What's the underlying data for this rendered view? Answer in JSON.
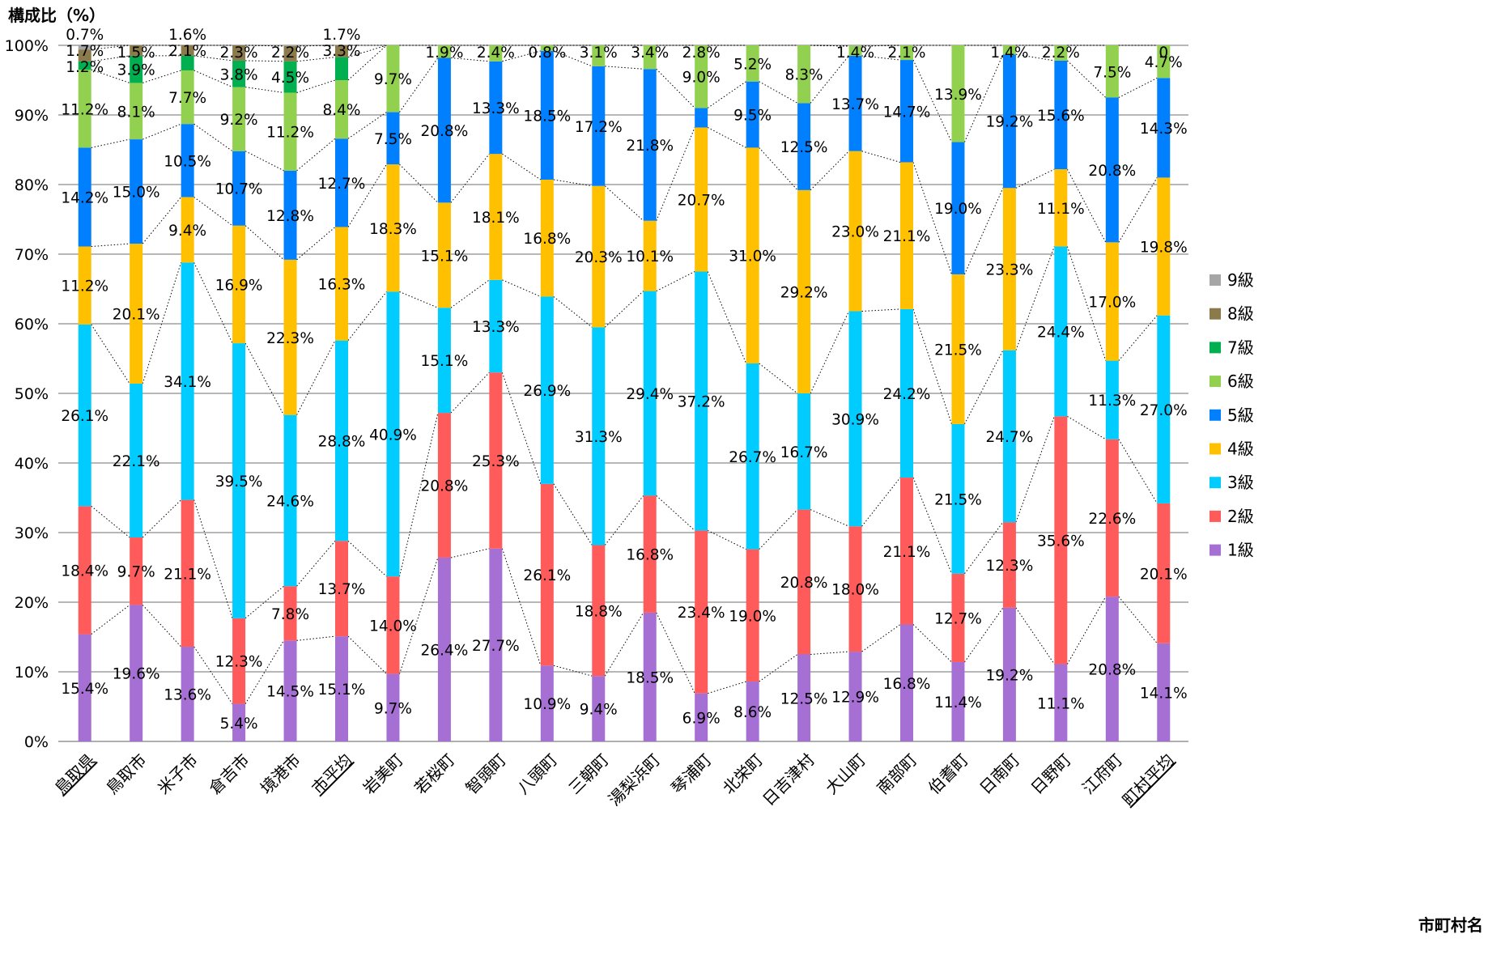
{
  "chart_data": {
    "type": "bar",
    "stacked": true,
    "ylabel": "構成比（%）",
    "xlabel": "市町村名",
    "ylim": [
      0,
      100
    ],
    "yticks": [
      "0%",
      "10%",
      "20%",
      "30%",
      "40%",
      "50%",
      "60%",
      "70%",
      "80%",
      "90%",
      "100%"
    ],
    "grid": true,
    "legend_position": "right",
    "categories": [
      "鳥取県",
      "鳥取市",
      "米子市",
      "倉吉市",
      "境港市",
      "市平均",
      "岩美町",
      "若桜町",
      "智頭町",
      "八頭町",
      "三朝町",
      "湯梨浜町",
      "琴浦町",
      "北栄町",
      "日吉津村",
      "大山町",
      "南部町",
      "伯耆町",
      "日南町",
      "日野町",
      "江府町",
      "町村平均"
    ],
    "underlined_categories": [
      "鳥取県",
      "市平均",
      "町村平均"
    ],
    "series": [
      {
        "name": "1級",
        "color": "#a66fd4",
        "values": [
          15.4,
          19.6,
          13.6,
          5.4,
          14.5,
          15.1,
          9.7,
          26.4,
          27.7,
          10.9,
          9.4,
          18.5,
          6.9,
          8.6,
          12.5,
          12.9,
          16.8,
          11.4,
          19.2,
          11.1,
          20.8,
          14.1
        ]
      },
      {
        "name": "2級",
        "color": "#ff5b5b",
        "values": [
          18.4,
          9.7,
          21.1,
          12.3,
          7.8,
          13.7,
          14.0,
          20.8,
          25.3,
          26.1,
          18.8,
          16.8,
          23.4,
          19.0,
          20.8,
          18.0,
          21.1,
          12.7,
          12.3,
          35.6,
          22.6,
          20.1
        ]
      },
      {
        "name": "3級",
        "color": "#00ccff",
        "values": [
          26.1,
          22.1,
          34.1,
          39.5,
          24.6,
          28.8,
          40.9,
          15.1,
          13.3,
          26.9,
          31.3,
          29.4,
          37.2,
          26.7,
          16.7,
          30.9,
          24.2,
          21.5,
          24.7,
          24.4,
          11.3,
          27.0
        ]
      },
      {
        "name": "4級",
        "color": "#ffc000",
        "values": [
          11.2,
          20.1,
          9.4,
          16.9,
          22.3,
          16.3,
          18.3,
          15.1,
          18.1,
          16.8,
          20.3,
          10.1,
          20.7,
          31.0,
          29.2,
          23.0,
          21.1,
          21.5,
          23.3,
          11.1,
          17.0,
          19.8
        ]
      },
      {
        "name": "5級",
        "color": "#0080ff",
        "values": [
          14.2,
          15.0,
          10.5,
          10.7,
          12.8,
          12.7,
          7.5,
          20.8,
          13.3,
          18.5,
          17.2,
          21.8,
          2.8,
          9.5,
          12.5,
          13.7,
          14.7,
          19.0,
          19.2,
          15.6,
          20.8,
          14.3
        ]
      },
      {
        "name": "6級",
        "color": "#92d050",
        "values": [
          11.2,
          8.1,
          7.7,
          9.2,
          11.2,
          8.4,
          9.7,
          1.9,
          2.4,
          0.8,
          3.1,
          3.4,
          9.0,
          5.2,
          8.3,
          1.4,
          2.1,
          13.9,
          1.4,
          2.2,
          7.5,
          4.7
        ]
      },
      {
        "name": "7級",
        "color": "#00b050",
        "values": [
          1.2,
          3.9,
          2.1,
          3.8,
          4.5,
          3.3,
          0,
          0,
          0,
          0,
          0,
          0,
          0,
          0,
          0,
          0,
          0,
          0,
          0,
          0,
          0,
          0
        ]
      },
      {
        "name": "8級",
        "color": "#8c7b4a",
        "values": [
          1.7,
          1.5,
          1.6,
          2.3,
          2.2,
          1.7,
          0,
          0,
          0,
          0,
          0,
          0,
          0,
          0,
          0,
          0,
          0,
          0,
          0,
          0,
          0,
          0
        ]
      },
      {
        "name": "9級",
        "color": "#a6a6a6",
        "values": [
          0.7,
          0,
          0,
          0,
          0,
          0,
          0,
          0,
          0,
          0,
          0,
          0,
          0,
          0,
          0,
          0,
          0,
          0,
          0,
          0,
          0,
          0
        ]
      }
    ],
    "labels": [
      [
        "15.4%",
        "18.4%",
        "26.1%",
        "11.2%",
        "14.2%",
        "11.2%",
        "1.2%",
        "1.7%",
        "0.7%"
      ],
      [
        "19.6%",
        "9.7%",
        "22.1%",
        "20.1%",
        "15.0%",
        "8.1%",
        "3.9%",
        "1.5%",
        ""
      ],
      [
        "13.6%",
        "21.1%",
        "34.1%",
        "9.4%",
        "10.5%",
        "7.7%",
        "2.1%",
        "1.6%",
        ""
      ],
      [
        "5.4%",
        "12.3%",
        "39.5%",
        "16.9%",
        "10.7%",
        "9.2%",
        "3.8%",
        "2.3%",
        ""
      ],
      [
        "14.5%",
        "7.8%",
        "24.6%",
        "22.3%",
        "12.8%",
        "11.2%",
        "4.5%",
        "2.2%",
        ""
      ],
      [
        "15.1%",
        "13.7%",
        "28.8%",
        "16.3%",
        "12.7%",
        "8.4%",
        "3.3%",
        "1.7%",
        ""
      ],
      [
        "9.7%",
        "14.0%",
        "40.9%",
        "18.3%",
        "7.5%",
        "9.7%",
        "",
        "",
        ""
      ],
      [
        "26.4%",
        "20.8%",
        "15.1%",
        "15.1%",
        "20.8%",
        "1.9%",
        "",
        "",
        ""
      ],
      [
        "27.7%",
        "25.3%",
        "13.3%",
        "18.1%",
        "13.3%",
        "2.4%",
        "",
        "",
        ""
      ],
      [
        "10.9%",
        "26.1%",
        "26.9%",
        "16.8%",
        "18.5%",
        "0.8%",
        "",
        "",
        ""
      ],
      [
        "9.4%",
        "18.8%",
        "31.3%",
        "20.3%",
        "17.2%",
        "3.1%",
        "",
        "",
        ""
      ],
      [
        "18.5%",
        "16.8%",
        "29.4%",
        "10.1%",
        "21.8%",
        "3.4%",
        "",
        "",
        ""
      ],
      [
        "6.9%",
        "23.4%",
        "37.2%",
        "20.7%",
        "2.8%",
        "9.0%",
        "",
        "",
        ""
      ],
      [
        "8.6%",
        "19.0%",
        "26.7%",
        "31.0%",
        "9.5%",
        "5.2%",
        "",
        "",
        ""
      ],
      [
        "12.5%",
        "20.8%",
        "16.7%",
        "29.2%",
        "12.5%",
        "8.3%",
        "",
        "",
        ""
      ],
      [
        "12.9%",
        "18.0%",
        "30.9%",
        "23.0%",
        "13.7%",
        "1.4%",
        "",
        "",
        ""
      ],
      [
        "16.8%",
        "21.1%",
        "24.2%",
        "21.1%",
        "14.7%",
        "2.1%",
        "",
        "",
        ""
      ],
      [
        "11.4%",
        "12.7%",
        "21.5%",
        "21.5%",
        "19.0%",
        "13.9%",
        "",
        "",
        ""
      ],
      [
        "19.2%",
        "12.3%",
        "24.7%",
        "23.3%",
        "19.2%",
        "1.4%",
        "",
        "",
        ""
      ],
      [
        "11.1%",
        "35.6%",
        "24.4%",
        "11.1%",
        "15.6%",
        "2.2%",
        "",
        "",
        ""
      ],
      [
        "20.8%",
        "22.6%",
        "11.3%",
        "17.0%",
        "20.8%",
        "7.5%",
        "",
        "",
        ""
      ],
      [
        "14.1%",
        "20.1%",
        "27.0%",
        "19.8%",
        "14.3%",
        "4.7%",
        "",
        "",
        "0"
      ]
    ],
    "legend_order": [
      "9級",
      "8級",
      "7級",
      "6級",
      "5級",
      "4級",
      "3級",
      "2級",
      "1級"
    ]
  }
}
